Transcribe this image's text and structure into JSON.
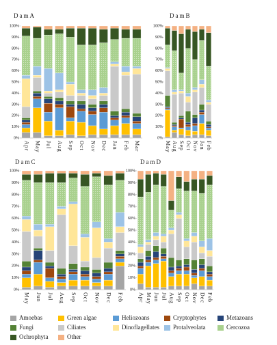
{
  "chart_data": [
    {
      "type": "stacked_bar",
      "title": "DamA",
      "categories": [
        "Apr",
        "May",
        "Jul",
        "Aug",
        "Sep",
        "Oct",
        "Nov",
        "Dec",
        "Jan",
        "Feb",
        "Mar"
      ],
      "ylim": [
        0,
        100
      ],
      "yticks": [
        {
          "value": 0,
          "label": "0%"
        },
        {
          "value": 10,
          "label": "10%"
        },
        {
          "value": 20,
          "label": "20%"
        },
        {
          "value": 30,
          "label": "30%"
        },
        {
          "value": 40,
          "label": "40%"
        },
        {
          "value": 50,
          "label": "50%"
        },
        {
          "value": 60,
          "label": "60%"
        },
        {
          "value": 70,
          "label": "70%"
        },
        {
          "value": 80,
          "label": "80%"
        },
        {
          "value": 90,
          "label": "90%"
        },
        {
          "value": 100,
          "label": "100%"
        }
      ],
      "series": [
        {
          "name": "Amoebas",
          "color": "#a5a5a5",
          "values": [
            5,
            5,
            2,
            2,
            3,
            2,
            3,
            3,
            3,
            3,
            3
          ]
        },
        {
          "name": "Green algae",
          "color": "#ffc000",
          "values": [
            4,
            22,
            13,
            5,
            12,
            12,
            8,
            5,
            8,
            10,
            5
          ]
        },
        {
          "name": "Heliozoans",
          "color": "#5b9bd5",
          "values": [
            3,
            8,
            8,
            20,
            3,
            10,
            10,
            15,
            5,
            5,
            5
          ]
        },
        {
          "name": "Cryptophytes",
          "color": "#9e480e",
          "values": [
            2,
            2,
            8,
            3,
            10,
            2,
            3,
            4,
            2,
            2,
            2
          ]
        },
        {
          "name": "Metazoans",
          "color": "#264478",
          "values": [
            2,
            3,
            4,
            3,
            2,
            4,
            3,
            3,
            2,
            3,
            4
          ]
        },
        {
          "name": "Fungi",
          "color": "#548235",
          "values": [
            2,
            2,
            2,
            3,
            3,
            3,
            3,
            3,
            4,
            3,
            3
          ]
        },
        {
          "name": "Ciliates",
          "color": "#c9c9c9",
          "values": [
            10,
            12,
            3,
            5,
            5,
            5,
            5,
            5,
            40,
            30,
            35
          ]
        },
        {
          "name": "Dinoflagellates",
          "color": "#ffe699",
          "values": [
            25,
            2,
            2,
            2,
            10,
            2,
            3,
            2,
            2,
            3,
            5
          ]
        },
        {
          "name": "Protalveolata",
          "color": "#9dc3e6",
          "values": [
            3,
            8,
            20,
            15,
            2,
            3,
            5,
            5,
            2,
            5,
            2
          ]
        },
        {
          "name": "Cercozoa",
          "color": "#a9d18e",
          "values": [
            35,
            25,
            30,
            35,
            40,
            40,
            40,
            40,
            20,
            25,
            25
          ]
        },
        {
          "name": "Ochrophyta",
          "color": "#375623",
          "values": [
            7,
            10,
            5,
            4,
            8,
            15,
            15,
            12,
            10,
            8,
            8
          ]
        },
        {
          "name": "Other",
          "color": "#f4b183",
          "values": [
            2,
            1,
            3,
            3,
            2,
            2,
            2,
            3,
            2,
            3,
            3
          ]
        }
      ]
    },
    {
      "type": "stacked_bar",
      "title": "DamB",
      "categories": [
        "May",
        "Aug",
        "Sep",
        "Oct",
        "Nov",
        "Jan",
        "Feb"
      ],
      "ylim": [
        0,
        100
      ],
      "yticks": [
        {
          "value": 0,
          "label": "0%"
        },
        {
          "value": 10,
          "label": "10%"
        },
        {
          "value": 20,
          "label": "20%"
        },
        {
          "value": 30,
          "label": "30%"
        },
        {
          "value": 40,
          "label": "40%"
        },
        {
          "value": 50,
          "label": "50%"
        },
        {
          "value": 60,
          "label": "60%"
        },
        {
          "value": 70,
          "label": "70%"
        },
        {
          "value": 80,
          "label": "80%"
        },
        {
          "value": 90,
          "label": "90%"
        },
        {
          "value": 100,
          "label": "100%"
        }
      ],
      "series": [
        {
          "name": "Amoebas",
          "color": "#a5a5a5",
          "values": [
            1,
            5,
            3,
            2,
            3,
            3,
            2
          ]
        },
        {
          "name": "Green algae",
          "color": "#ffc000",
          "values": [
            24,
            2,
            5,
            5,
            3,
            10,
            5
          ]
        },
        {
          "name": "Heliozoans",
          "color": "#5b9bd5",
          "values": [
            1,
            3,
            1,
            3,
            5,
            8,
            2
          ]
        },
        {
          "name": "Cryptophytes",
          "color": "#9e480e",
          "values": [
            1,
            1,
            8,
            2,
            2,
            2,
            1
          ]
        },
        {
          "name": "Metazoans",
          "color": "#264478",
          "values": [
            1,
            1,
            1,
            2,
            5,
            2,
            2
          ]
        },
        {
          "name": "Fungi",
          "color": "#548235",
          "values": [
            10,
            2,
            2,
            10,
            3,
            5,
            3
          ]
        },
        {
          "name": "Ciliates",
          "color": "#c9c9c9",
          "values": [
            22,
            25,
            20,
            8,
            20,
            15,
            15
          ]
        },
        {
          "name": "Dinoflagellates",
          "color": "#ffe699",
          "values": [
            2,
            2,
            2,
            5,
            2,
            3,
            2
          ]
        },
        {
          "name": "Protalveolata",
          "color": "#9dc3e6",
          "values": [
            1,
            2,
            1,
            3,
            2,
            4,
            2
          ]
        },
        {
          "name": "Cercozoa",
          "color": "#a9d18e",
          "values": [
            20,
            35,
            15,
            40,
            25,
            35,
            30
          ]
        },
        {
          "name": "Ochrophyta",
          "color": "#375623",
          "values": [
            15,
            18,
            35,
            17,
            25,
            10,
            30
          ]
        },
        {
          "name": "Other",
          "color": "#f4b183",
          "values": [
            2,
            4,
            7,
            3,
            5,
            3,
            6
          ]
        }
      ]
    },
    {
      "type": "stacked_bar",
      "title": "DamC",
      "categories": [
        "May",
        "Jun",
        "Jul",
        "Aug",
        "Sep",
        "Oct",
        "Nov",
        "Dec",
        "Feb"
      ],
      "ylim": [
        0,
        100
      ],
      "yticks": [
        {
          "value": 0,
          "label": "0%"
        },
        {
          "value": 10,
          "label": "10%"
        },
        {
          "value": 20,
          "label": "20%"
        },
        {
          "value": 30,
          "label": "30%"
        },
        {
          "value": 40,
          "label": "40%"
        },
        {
          "value": 50,
          "label": "50%"
        },
        {
          "value": 60,
          "label": "60%"
        },
        {
          "value": 70,
          "label": "70%"
        },
        {
          "value": 80,
          "label": "80%"
        },
        {
          "value": 90,
          "label": "90%"
        },
        {
          "value": 100,
          "label": "100%"
        }
      ],
      "series": [
        {
          "name": "Amoebas",
          "color": "#a5a5a5",
          "values": [
            2,
            3,
            2,
            3,
            3,
            3,
            3,
            3,
            20
          ]
        },
        {
          "name": "Green algae",
          "color": "#ffc000",
          "values": [
            8,
            10,
            5,
            3,
            5,
            5,
            3,
            5,
            3
          ]
        },
        {
          "name": "Heliozoans",
          "color": "#5b9bd5",
          "values": [
            3,
            10,
            3,
            3,
            5,
            3,
            3,
            5,
            3
          ]
        },
        {
          "name": "Cryptophytes",
          "color": "#9e480e",
          "values": [
            3,
            2,
            8,
            2,
            2,
            2,
            2,
            2,
            2
          ]
        },
        {
          "name": "Metazoans",
          "color": "#264478",
          "values": [
            3,
            8,
            2,
            2,
            2,
            3,
            3,
            3,
            2
          ]
        },
        {
          "name": "Fungi",
          "color": "#548235",
          "values": [
            5,
            2,
            3,
            5,
            5,
            3,
            3,
            5,
            3
          ]
        },
        {
          "name": "Ciliates",
          "color": "#c9c9c9",
          "values": [
            25,
            10,
            10,
            45,
            15,
            5,
            10,
            12,
            15
          ]
        },
        {
          "name": "Dinoflagellates",
          "color": "#ffe699",
          "values": [
            10,
            5,
            20,
            5,
            35,
            20,
            25,
            5,
            5
          ]
        },
        {
          "name": "Protalveolata",
          "color": "#9dc3e6",
          "values": [
            3,
            5,
            2,
            2,
            2,
            3,
            5,
            3,
            12
          ]
        },
        {
          "name": "Cercozoa",
          "color": "#a9d18e",
          "values": [
            30,
            35,
            35,
            20,
            20,
            40,
            38,
            45,
            27
          ]
        },
        {
          "name": "Ochrophyta",
          "color": "#375623",
          "values": [
            5,
            7,
            8,
            8,
            4,
            10,
            3,
            8,
            6
          ]
        },
        {
          "name": "Other",
          "color": "#f4b183",
          "values": [
            3,
            3,
            2,
            2,
            2,
            3,
            2,
            4,
            2
          ]
        }
      ]
    },
    {
      "type": "stacked_bar",
      "title": "DamD",
      "categories": [
        "Apr",
        "May",
        "Jun",
        "Jul",
        "Aug",
        "Sep",
        "Oct",
        "Nov",
        "Dec",
        "Feb"
      ],
      "ylim": [
        0,
        100
      ],
      "yticks": [
        {
          "value": 0,
          "label": "0%"
        },
        {
          "value": 10,
          "label": "10%"
        },
        {
          "value": 20,
          "label": "20%"
        },
        {
          "value": 30,
          "label": "30%"
        },
        {
          "value": 40,
          "label": "40%"
        },
        {
          "value": 50,
          "label": "50%"
        },
        {
          "value": 60,
          "label": "60%"
        },
        {
          "value": 70,
          "label": "70%"
        },
        {
          "value": 80,
          "label": "80%"
        },
        {
          "value": 90,
          "label": "90%"
        },
        {
          "value": 100,
          "label": "100%"
        }
      ],
      "series": [
        {
          "name": "Amoebas",
          "color": "#a5a5a5",
          "values": [
            5,
            2,
            2,
            2,
            3,
            3,
            3,
            5,
            3,
            3
          ]
        },
        {
          "name": "Green algae",
          "color": "#ffc000",
          "values": [
            8,
            18,
            20,
            22,
            8,
            10,
            10,
            5,
            8,
            5
          ]
        },
        {
          "name": "Heliozoans",
          "color": "#5b9bd5",
          "values": [
            5,
            3,
            3,
            2,
            3,
            3,
            3,
            2,
            5,
            3
          ]
        },
        {
          "name": "Cryptophytes",
          "color": "#9e480e",
          "values": [
            2,
            2,
            2,
            2,
            2,
            2,
            3,
            2,
            2,
            2
          ]
        },
        {
          "name": "Metazoans",
          "color": "#264478",
          "values": [
            3,
            3,
            5,
            2,
            3,
            2,
            2,
            3,
            3,
            2
          ]
        },
        {
          "name": "Fungi",
          "color": "#548235",
          "values": [
            3,
            5,
            5,
            5,
            8,
            5,
            5,
            8,
            5,
            5
          ]
        },
        {
          "name": "Ciliates",
          "color": "#c9c9c9",
          "values": [
            5,
            5,
            5,
            5,
            20,
            35,
            10,
            15,
            5,
            8
          ]
        },
        {
          "name": "Dinoflagellates",
          "color": "#ffe699",
          "values": [
            5,
            2,
            3,
            5,
            3,
            3,
            5,
            5,
            5,
            5
          ]
        },
        {
          "name": "Protalveolata",
          "color": "#9dc3e6",
          "values": [
            2,
            2,
            3,
            2,
            2,
            2,
            2,
            3,
            5,
            10
          ]
        },
        {
          "name": "Cercozoa",
          "color": "#a9d18e",
          "values": [
            40,
            40,
            40,
            40,
            15,
            20,
            40,
            35,
            40,
            45
          ]
        },
        {
          "name": "Ochrophyta",
          "color": "#375623",
          "values": [
            15,
            15,
            10,
            10,
            8,
            10,
            8,
            10,
            12,
            8
          ]
        },
        {
          "name": "Other",
          "color": "#f4b183",
          "values": [
            7,
            3,
            2,
            3,
            25,
            5,
            9,
            7,
            7,
            4
          ]
        }
      ]
    }
  ]
}
